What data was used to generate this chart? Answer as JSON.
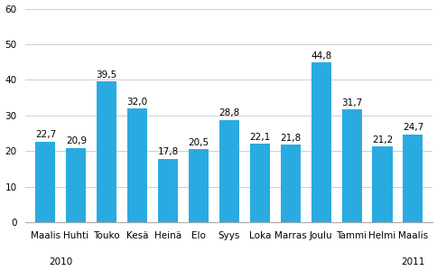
{
  "categories": [
    "Maalis",
    "Huhti",
    "Touko",
    "Kesä",
    "Heinä",
    "Elo",
    "Syys",
    "Loka",
    "Marras",
    "Joulu",
    "Tammi",
    "Helmi",
    "Maalis"
  ],
  "values": [
    22.7,
    20.9,
    39.5,
    32.0,
    17.8,
    20.5,
    28.8,
    22.1,
    21.8,
    44.8,
    31.7,
    21.2,
    24.7
  ],
  "value_labels": [
    "22,7",
    "20,9",
    "39,5",
    "32,0",
    "17,8",
    "20,5",
    "28,8",
    "22,1",
    "21,8",
    "44,8",
    "31,7",
    "21,2",
    "24,7"
  ],
  "bar_color": "#29abe2",
  "ylim": [
    0,
    60
  ],
  "yticks": [
    0,
    10,
    20,
    30,
    40,
    50,
    60
  ],
  "background_color": "#ffffff",
  "grid_color": "#c8c8c8",
  "label_fontsize": 7.5,
  "value_fontsize": 7.5,
  "bar_width": 0.65,
  "year_2010_idx": 0.5,
  "year_2011_idx": 12
}
